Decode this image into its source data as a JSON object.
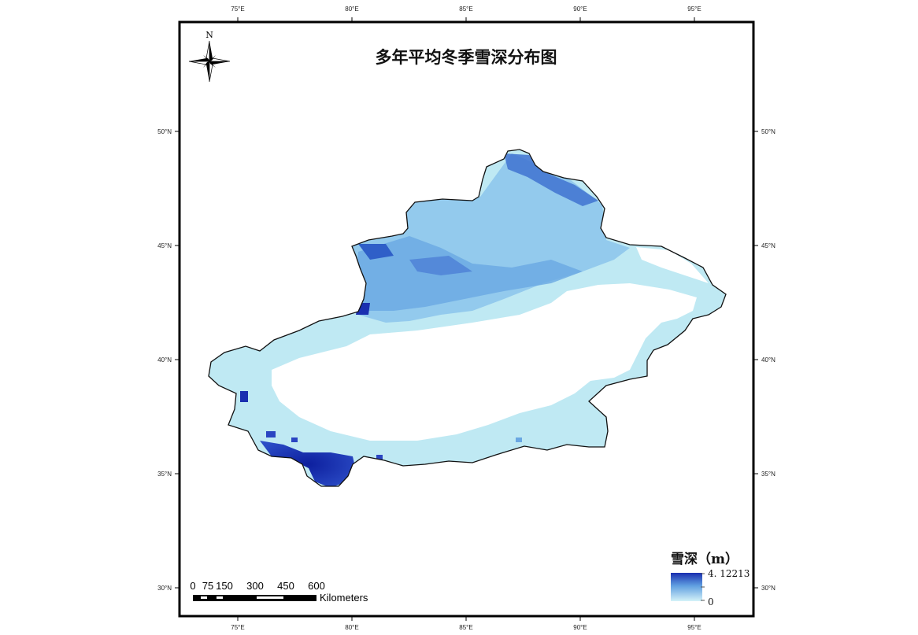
{
  "map": {
    "title": "多年平均冬季雪深分布图",
    "north_label": "N",
    "lon_ticks": [
      "75°E",
      "80°E",
      "85°E",
      "90°E",
      "95°E"
    ],
    "lat_ticks": [
      "50°N",
      "45°N",
      "40°N",
      "35°N",
      "30°N"
    ]
  },
  "legend": {
    "title": "雪深（m）",
    "max_label": "4. 12213",
    "min_label": "0",
    "color_high": "#1a2fb0",
    "color_mid": "#5f9ee0",
    "color_low": "#c8eef6"
  },
  "scalebar": {
    "labels": [
      "0",
      "75",
      "150",
      "300",
      "450",
      "600"
    ],
    "unit": "Kilometers"
  },
  "colors": {
    "snow_light": "#bfe9f3",
    "snow_medium": "#7fb8e6",
    "snow_deep": "#3b6fd0",
    "snow_max": "#0d1f9e",
    "outline": "#111111"
  }
}
